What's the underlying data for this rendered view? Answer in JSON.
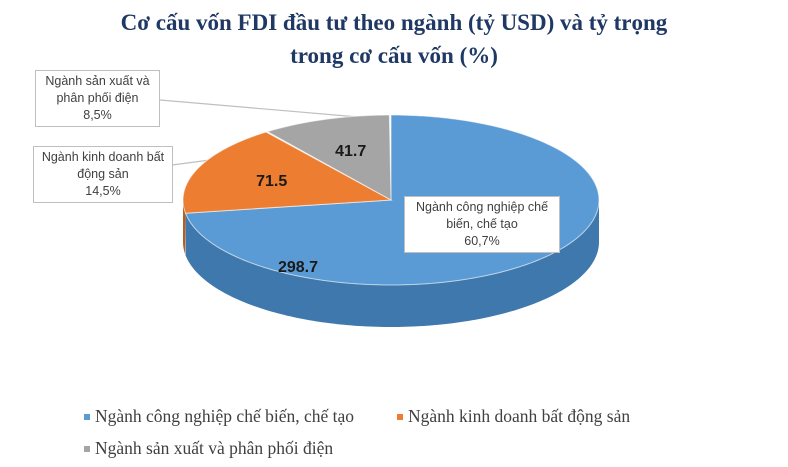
{
  "chart_data": {
    "type": "pie",
    "style": "3d",
    "title_line1": "Cơ cấu vốn FDI đầu tư theo ngành (tỷ USD) và tỷ trọng",
    "title_line2": "trong cơ cấu vốn (%)",
    "slices": [
      {
        "name": "Ngành công nghiệp chế biến, chế tạo",
        "value": 298.7,
        "value_label": "298.7",
        "callout_line1": "Ngành công nghiệp chế",
        "callout_line2": "biến, chế tạo",
        "percent_label": "60,7%",
        "color": "#5b9bd5",
        "side_color": "#3f78ad"
      },
      {
        "name": "Ngành kinh doanh bất động sản",
        "value": 71.5,
        "value_label": "71.5",
        "callout_line1": "Ngành kinh doanh bất",
        "callout_line2": "động sản",
        "percent_label": "14,5%",
        "color": "#ed7d31",
        "side_color": "#b85d1f"
      },
      {
        "name": "Ngành sản xuất và phân phối điện",
        "value": 41.7,
        "value_label": "41.7",
        "callout_line1": "Ngành sản xuất và",
        "callout_line2": "phân phối điện",
        "percent_label": "8,5%",
        "color": "#a5a5a5",
        "side_color": "#7c7c7c"
      }
    ],
    "legend_position": "bottom"
  }
}
